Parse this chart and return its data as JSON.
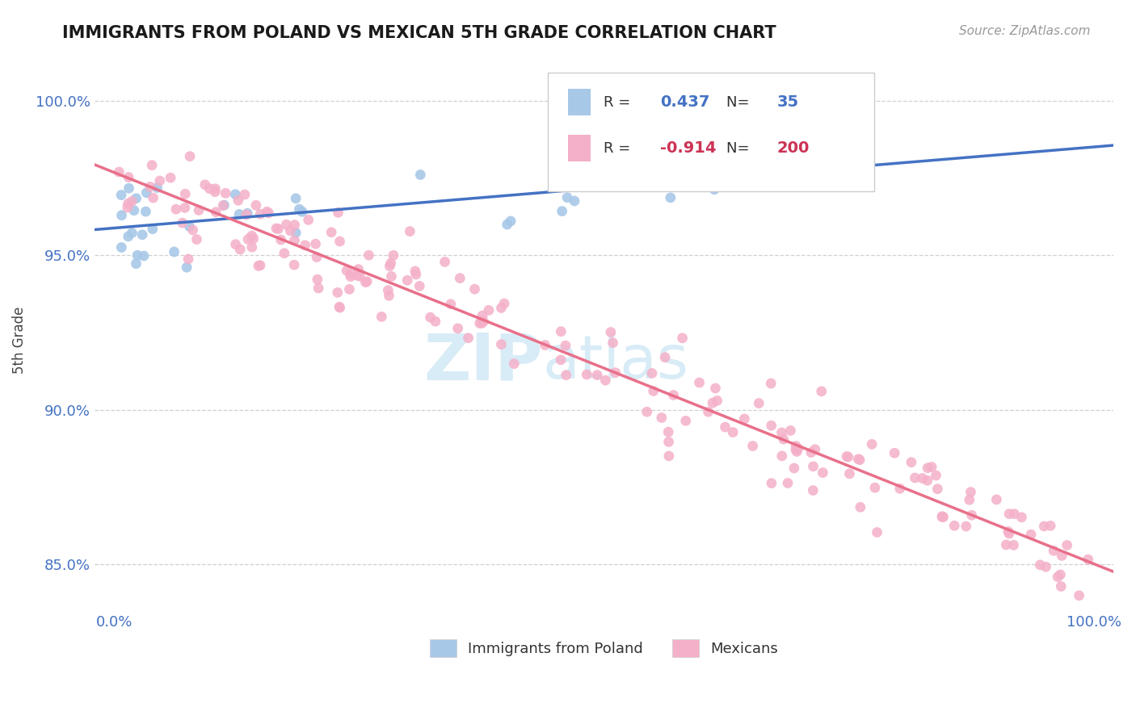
{
  "title": "IMMIGRANTS FROM POLAND VS MEXICAN 5TH GRADE CORRELATION CHART",
  "source_text": "Source: ZipAtlas.com",
  "ylabel": "5th Grade",
  "poland_color": "#a8c8e8",
  "mexican_color": "#f4b0c8",
  "poland_line_color": "#4472c4",
  "mexican_line_color": "#e8708a",
  "grid_color": "#d0d0d0",
  "bg_color": "#ffffff",
  "title_color": "#1a1a1a",
  "tick_color": "#4472c4",
  "r_color_poland": "#4472c4",
  "r_color_mexican": "#cc3355",
  "watermark_color": "#c8e4f4",
  "poland_R": 0.437,
  "poland_N": 35,
  "mexican_R": -0.914,
  "mexican_N": 200,
  "y_min": 0.835,
  "y_max": 1.01,
  "x_min": -0.02,
  "x_max": 1.02,
  "y_ticks": [
    0.85,
    0.9,
    0.95,
    1.0
  ],
  "x_ticks": [
    0.0,
    1.0
  ],
  "poland_label": "Immigrants from Poland",
  "mexican_label": "Mexicans"
}
